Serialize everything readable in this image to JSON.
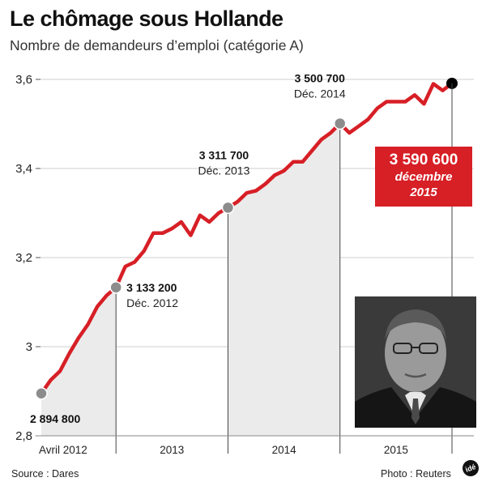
{
  "header": {
    "title": "Le chômage sous Hollande",
    "subtitle": "Nombre de demandeurs d’emploi (catégorie A)"
  },
  "footer": {
    "source": "Source : Dares",
    "photo_credit": "Photo : Reuters",
    "logo_text": "idé"
  },
  "highlight": {
    "value": "3 590 600",
    "date_line1": "décembre",
    "date_line2": "2015"
  },
  "colors": {
    "line": "#d71f26",
    "marker": "#8c8c8c",
    "band": "#ebebeb",
    "grid": "#cfcfcf",
    "callout_bg": "#d71f26",
    "end_marker": "#000000"
  },
  "chart_data": {
    "type": "line",
    "title": "Le chômage sous Hollande",
    "subtitle": "Nombre de demandeurs d’emploi (catégorie A)",
    "ylabel": "",
    "xlabel": "",
    "ylim": [
      2.8,
      3.6
    ],
    "grid": true,
    "y_ticks": [
      "2,8",
      "3",
      "3,2",
      "3,4",
      "3,6"
    ],
    "y_tick_values": [
      2.8,
      3.0,
      3.2,
      3.4,
      3.6
    ],
    "x_tick_labels": [
      "Avril 2012",
      "2013",
      "2014",
      "2015"
    ],
    "x": [
      "2012-04",
      "2012-05",
      "2012-06",
      "2012-07",
      "2012-08",
      "2012-09",
      "2012-10",
      "2012-11",
      "2012-12",
      "2013-01",
      "2013-02",
      "2013-03",
      "2013-04",
      "2013-05",
      "2013-06",
      "2013-07",
      "2013-08",
      "2013-09",
      "2013-10",
      "2013-11",
      "2013-12",
      "2014-01",
      "2014-02",
      "2014-03",
      "2014-04",
      "2014-05",
      "2014-06",
      "2014-07",
      "2014-08",
      "2014-09",
      "2014-10",
      "2014-11",
      "2014-12",
      "2015-01",
      "2015-02",
      "2015-03",
      "2015-04",
      "2015-05",
      "2015-06",
      "2015-07",
      "2015-08",
      "2015-09",
      "2015-10",
      "2015-11",
      "2015-12"
    ],
    "series": [
      {
        "values": [
          2.895,
          2.925,
          2.945,
          2.985,
          3.02,
          3.05,
          3.09,
          3.115,
          3.133,
          3.18,
          3.19,
          3.215,
          3.255,
          3.255,
          3.265,
          3.28,
          3.25,
          3.295,
          3.28,
          3.3,
          3.312,
          3.325,
          3.345,
          3.35,
          3.365,
          3.385,
          3.395,
          3.415,
          3.415,
          3.44,
          3.465,
          3.48,
          3.501,
          3.48,
          3.495,
          3.51,
          3.535,
          3.55,
          3.55,
          3.55,
          3.565,
          3.545,
          3.59,
          3.575,
          3.591
        ]
      }
    ],
    "annotations": [
      {
        "index": 0,
        "value": "2 894 800",
        "date": ""
      },
      {
        "index": 8,
        "value": "3 133 200",
        "date": "Déc. 2012"
      },
      {
        "index": 20,
        "value": "3 311 700",
        "date": "Déc. 2013"
      },
      {
        "index": 32,
        "value": "3 500 700",
        "date": "Déc. 2014"
      }
    ]
  }
}
